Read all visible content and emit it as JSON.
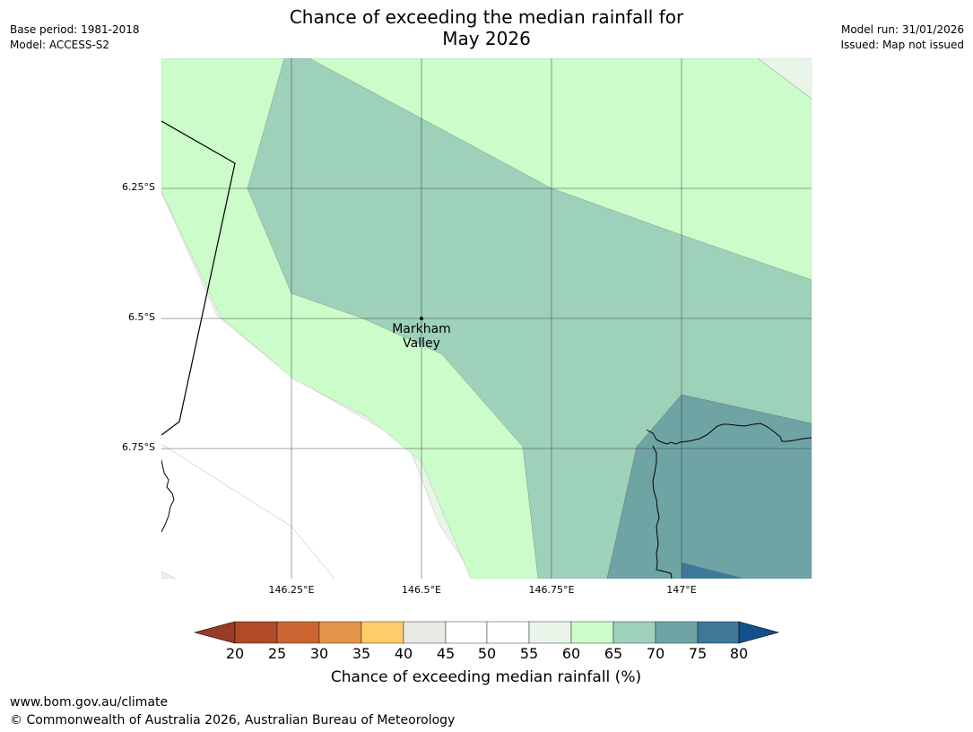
{
  "title_line1": "Chance of exceeding the median rainfall for",
  "title_line2": "May 2026",
  "base_period": "Base period: 1981-2018",
  "model": "Model: ACCESS-S2",
  "model_run": "Model run: 31/01/2026",
  "issued": "Issued: Map not issued",
  "latitude_labels": [
    "6.25°S",
    "6.5°S",
    "6.75°S"
  ],
  "longitude_labels": [
    "146.25°E",
    "146.5°E",
    "146.75°E",
    "147°E"
  ],
  "place_label_line1": "Markham",
  "place_label_line2": "Valley",
  "colorbar": {
    "ticks": [
      "20",
      "25",
      "30",
      "35",
      "40",
      "45",
      "50",
      "55",
      "60",
      "65",
      "70",
      "75",
      "80"
    ],
    "label": "Chance of exceeding median rainfall (%)",
    "colors": {
      "lt20": "#9a3a27",
      "20-25": "#b04a28",
      "25-30": "#cc6432",
      "30-35": "#e29548",
      "35-40": "#fdcd6b",
      "40-45": "#eae8e3",
      "45-50": "#ffffff",
      "50-55": "#ffffff",
      "55-60": "#eaf5ea",
      "60-65": "#cbfcca",
      "65-70": "#9ed1b9",
      "70-75": "#6fa4a5",
      "75-80": "#3f7799",
      "gt80": "#134f8b"
    }
  },
  "footer_url": "www.bom.gov.au/climate",
  "footer_copyright": "© Commonwealth of Australia 2026, Australian Bureau of Meteorology"
}
